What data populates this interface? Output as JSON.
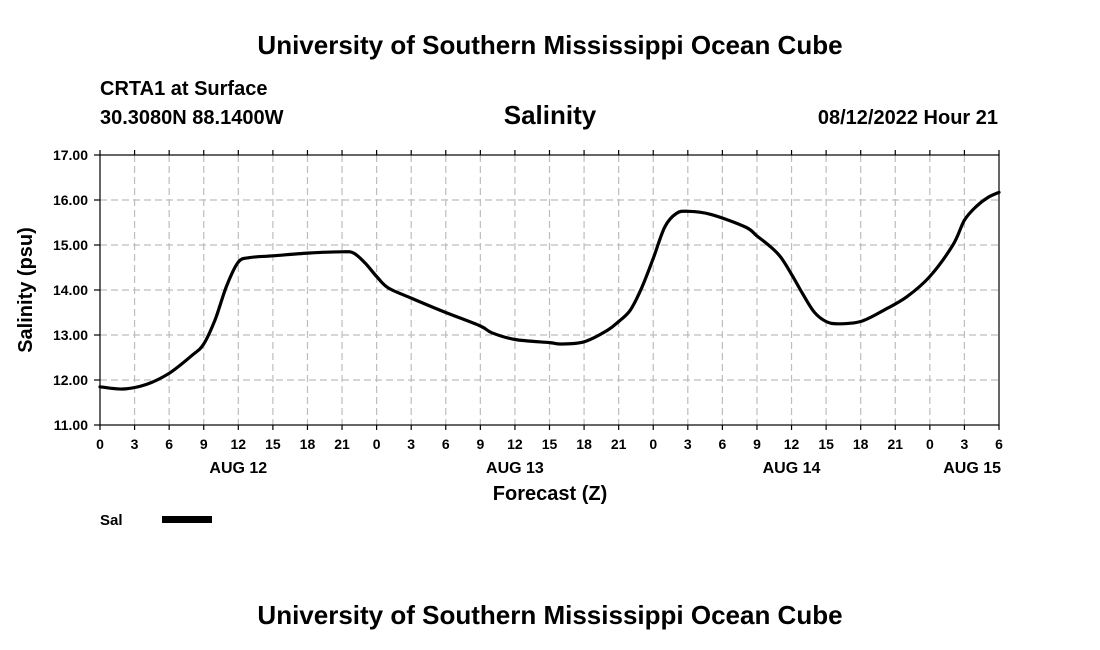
{
  "header": {
    "title_top": "University of Southern Mississippi Ocean Cube",
    "station": "CRTA1 at Surface",
    "coords": "30.3080N  88.1400W",
    "timestamp": "08/12/2022 Hour 21",
    "title_bottom": "University of Southern Mississippi Ocean Cube"
  },
  "chart_data": {
    "type": "line",
    "title": "Salinity",
    "xlabel": "Forecast (Z)",
    "ylabel": "Salinity (psu)",
    "ylim": [
      11,
      17
    ],
    "yticks": [
      "11.00",
      "12.00",
      "13.00",
      "14.00",
      "15.00",
      "16.00",
      "17.00"
    ],
    "xlim": [
      0,
      78
    ],
    "xtick_labels": [
      "0",
      "3",
      "6",
      "9",
      "12",
      "15",
      "18",
      "21",
      "0",
      "3",
      "6",
      "9",
      "12",
      "15",
      "18",
      "21",
      "0",
      "3",
      "6",
      "9",
      "12",
      "15",
      "18",
      "21",
      "0",
      "3",
      "6"
    ],
    "day_labels": [
      {
        "label": "AUG 12",
        "hour": 12
      },
      {
        "label": "AUG 13",
        "hour": 36
      },
      {
        "label": "AUG 14",
        "hour": 60
      },
      {
        "label": "AUG 15",
        "hour": 78
      }
    ],
    "grid": true,
    "legend": {
      "label": "Sal",
      "placement": "bottom-left"
    },
    "series": [
      {
        "name": "Sal",
        "x": [
          0,
          2,
          4,
          6,
          8,
          9,
          10,
          11,
          12,
          13,
          15,
          18,
          21,
          22,
          23,
          24,
          25,
          27,
          30,
          33,
          34,
          36,
          39,
          40,
          42,
          44,
          45,
          46,
          47,
          48,
          49,
          50,
          51,
          53,
          56,
          57,
          58,
          59,
          60,
          61,
          62,
          63,
          64,
          66,
          68,
          70,
          72,
          74,
          75,
          76,
          77,
          78
        ],
        "y": [
          11.85,
          11.8,
          11.9,
          12.15,
          12.55,
          12.8,
          13.35,
          14.1,
          14.62,
          14.72,
          14.76,
          14.82,
          14.85,
          14.82,
          14.6,
          14.3,
          14.05,
          13.82,
          13.5,
          13.2,
          13.05,
          12.9,
          12.83,
          12.8,
          12.85,
          13.1,
          13.3,
          13.55,
          14.05,
          14.7,
          15.4,
          15.7,
          15.75,
          15.68,
          15.4,
          15.2,
          15.0,
          14.75,
          14.35,
          13.9,
          13.5,
          13.3,
          13.25,
          13.3,
          13.55,
          13.85,
          14.3,
          15.0,
          15.55,
          15.85,
          16.05,
          16.17
        ]
      }
    ]
  }
}
